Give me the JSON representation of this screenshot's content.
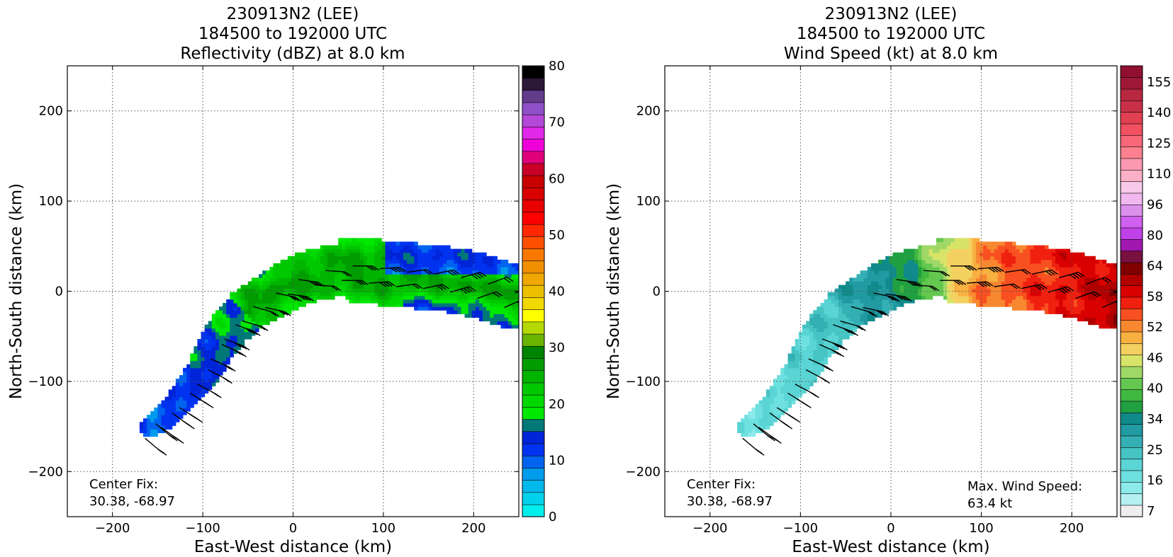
{
  "panels": [
    {
      "title_lines": [
        "230913N2 (LEE)",
        "184500 to 192000 UTC",
        "Reflectivity (dBZ) at 8.0 km"
      ],
      "xlabel": "East-West distance (km)",
      "ylabel": "North-South distance (km)",
      "center_fix_label": "Center Fix:",
      "center_fix_value": "30.38, -68.97",
      "max_label": "",
      "max_value": ""
    },
    {
      "title_lines": [
        "230913N2 (LEE)",
        "184500 to 192000 UTC",
        "Wind Speed (kt) at 8.0 km"
      ],
      "xlabel": "East-West distance (km)",
      "ylabel": "North-South distance (km)",
      "center_fix_label": "Center Fix:",
      "center_fix_value": "30.38, -68.97",
      "max_label": "Max. Wind Speed:",
      "max_value": "63.4 kt"
    }
  ],
  "chart_data": [
    {
      "type": "heatmap",
      "title": "230913N2 (LEE) 184500 to 192000 UTC Reflectivity (dBZ) at 8.0 km",
      "xlabel": "East-West distance (km)",
      "ylabel": "North-South distance (km)",
      "xlim": [
        -250,
        250
      ],
      "ylim": [
        -250,
        250
      ],
      "xticks": [
        -200,
        -100,
        0,
        100,
        200
      ],
      "yticks": [
        -200,
        -100,
        0,
        100,
        200
      ],
      "grid": true,
      "colorbar": {
        "min": 0,
        "max": 80,
        "step": 2.5,
        "ticks": [
          0,
          10,
          20,
          30,
          40,
          50,
          60,
          70,
          80
        ],
        "colors": [
          "#00eeee",
          "#00d2ec",
          "#00b8ec",
          "#009cec",
          "#0064f0",
          "#0033f0",
          "#0024d8",
          "#007878",
          "#00e800",
          "#00d800",
          "#00c800",
          "#00b400",
          "#009c00",
          "#008400",
          "#6ab400",
          "#b4d800",
          "#ffff00",
          "#f0d800",
          "#ecc000",
          "#f0a800",
          "#f09000",
          "#f87800",
          "#ff5000",
          "#ff2800",
          "#ff0000",
          "#e80000",
          "#d80000",
          "#c80000",
          "#c80028",
          "#e0007a",
          "#f000d8",
          "#e028e8",
          "#b448d8",
          "#9050c8",
          "#643c8c",
          "#2c1838",
          "#000000"
        ]
      },
      "data_axis": "dBZ"
    },
    {
      "type": "heatmap",
      "title": "230913N2 (LEE) 184500 to 192000 UTC Wind Speed (kt) at 8.0 km",
      "xlabel": "East-West distance (km)",
      "ylabel": "North-South distance (km)",
      "xlim": [
        -250,
        250
      ],
      "ylim": [
        -250,
        250
      ],
      "xticks": [
        -200,
        -100,
        0,
        100,
        200
      ],
      "yticks": [
        -200,
        -100,
        0,
        100,
        200
      ],
      "grid": true,
      "colorbar": {
        "tick_labels": [
          "7",
          "16",
          "25",
          "34",
          "40",
          "46",
          "52",
          "58",
          "64",
          "80",
          "96",
          "110",
          "125",
          "140",
          "155"
        ],
        "colors": [
          "#eeeeee",
          "#b4f0f0",
          "#8ceaea",
          "#6ee0e0",
          "#5ad4d4",
          "#46c4c4",
          "#34b0b4",
          "#229aa2",
          "#108a8a",
          "#20a040",
          "#40b840",
          "#64c850",
          "#a0d868",
          "#d8e468",
          "#f4d060",
          "#f8b040",
          "#f88830",
          "#f85020",
          "#f02010",
          "#d80000",
          "#b00000",
          "#800000",
          "#781040",
          "#a018b0",
          "#c040e8",
          "#d060f0",
          "#dc90ec",
          "#f0b8ee",
          "#f8c8e8",
          "#fcb0c8",
          "#fc98b0",
          "#fc8090",
          "#f86878",
          "#f05060",
          "#e04050",
          "#c83048",
          "#b82840",
          "#a01838",
          "#901030"
        ]
      },
      "max_wind_speed_kt": 63.4
    }
  ]
}
